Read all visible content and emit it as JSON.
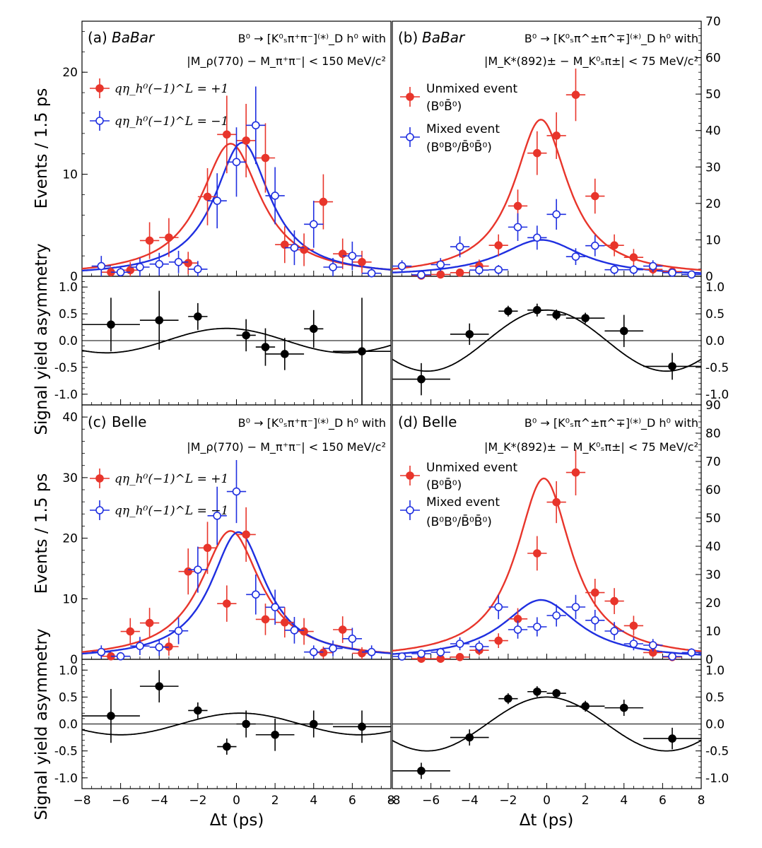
{
  "labels": {
    "y_events": "Events / 1.5 ps",
    "y_asym": "Signal yield asymmetry",
    "x_label": "Δt (ps)"
  },
  "colors": {
    "red": "#e8352b",
    "blue": "#1f2fe0",
    "black": "#000000"
  },
  "panels": {
    "a": {
      "tag": "(a)",
      "experiment": "BaBar",
      "decay": "B⁰ → [K⁰ₛπ⁺π⁻]⁽*⁾_D h⁰ with",
      "cut": "|M_ρ(770) − M_π⁺π⁻| < 150 MeV/c²",
      "legend": [
        "qη_h⁰(−1)^L = +1",
        "qη_h⁰(−1)^L = −1"
      ]
    },
    "b": {
      "tag": "(b)",
      "experiment": "BaBar",
      "decay": "B⁰ → [K⁰ₛπ^±π^∓]⁽*⁾_D h⁰ with",
      "cut": "|M_K*(892)± − M_K⁰ₛπ±| < 75 MeV/c²",
      "legend": [
        "Unmixed event",
        "(B⁰B̄⁰)",
        "Mixed event",
        "(B⁰B⁰/B̄⁰B̄⁰)"
      ]
    },
    "c": {
      "tag": "(c)",
      "experiment": "Belle",
      "decay": "B⁰ → [K⁰ₛπ⁺π⁻]⁽*⁾_D h⁰ with",
      "cut": "|M_ρ(770) − M_π⁺π⁻| < 150 MeV/c²",
      "legend": [
        "qη_h⁰(−1)^L = +1",
        "qη_h⁰(−1)^L = −1"
      ]
    },
    "d": {
      "tag": "(d)",
      "experiment": "Belle",
      "decay": "B⁰ → [K⁰ₛπ^±π^∓]⁽*⁾_D h⁰ with",
      "cut": "|M_K*(892)± − M_K⁰ₛπ±| < 75 MeV/c²",
      "legend": [
        "Unmixed event",
        "(B⁰B̄⁰)",
        "Mixed event",
        "(B⁰B⁰/B̄⁰B̄⁰)"
      ]
    }
  },
  "chart_data": [
    {
      "id": "a_top",
      "type": "scatter",
      "xlim": [
        -8,
        8
      ],
      "ylim": [
        0,
        25
      ],
      "yticks": [
        0,
        10,
        20
      ],
      "xlabel": "Δt (ps)",
      "ylabel": "Events / 1.5 ps",
      "series": [
        {
          "name": "qη_h⁰(−1)^L = +1",
          "color": "red",
          "marker": "filled",
          "x": [
            -6.5,
            -5.5,
            -4.5,
            -3.5,
            -2.5,
            -1.5,
            -0.5,
            0.5,
            1.5,
            2.5,
            3.5,
            4.5,
            5.5,
            6.5
          ],
          "y": [
            0.4,
            0.6,
            3.5,
            3.8,
            1.3,
            7.8,
            13.9,
            13.3,
            11.6,
            3.1,
            2.6,
            7.3,
            2.2,
            1.4
          ],
          "err": [
            0.5,
            0.8,
            1.8,
            1.9,
            1.1,
            2.8,
            3.8,
            3.6,
            3.4,
            1.8,
            1.6,
            2.7,
            1.5,
            1.1
          ],
          "fit": {
            "A": 13,
            "mu": -0.3,
            "w": 1.9,
            "C": 0
          }
        },
        {
          "name": "qη_h⁰(−1)^L = −1",
          "color": "blue",
          "marker": "open",
          "x": [
            -7,
            -6,
            -5,
            -4,
            -3,
            -2,
            -1,
            0,
            1,
            2,
            3,
            4,
            5,
            6,
            7
          ],
          "y": [
            1.0,
            0.4,
            0.9,
            1.2,
            1.4,
            0.7,
            7.4,
            11.2,
            14.8,
            7.9,
            2.8,
            5.1,
            0.9,
            2.0,
            0.3
          ],
          "err": [
            1.0,
            0.6,
            0.9,
            1.1,
            1.1,
            0.8,
            2.7,
            3.4,
            3.8,
            2.8,
            1.7,
            2.3,
            0.9,
            1.4,
            0.5
          ],
          "fit": {
            "A": 13.1,
            "mu": 0.3,
            "w": 1.75,
            "C": 0
          }
        }
      ]
    },
    {
      "id": "a_asym",
      "type": "scatter",
      "xlim": [
        -8,
        8
      ],
      "ylim": [
        -1.2,
        1.2
      ],
      "yticks": [
        1.0,
        0.5,
        0.0,
        -0.5,
        -1.0
      ],
      "ylabel": "Signal yield asymmetry",
      "series": [
        {
          "name": "asymmetry",
          "color": "black",
          "marker": "filled",
          "x": [
            -6.5,
            -4,
            -2,
            0.5,
            1.5,
            2.5,
            4,
            6.5
          ],
          "y": [
            0.3,
            0.38,
            0.45,
            0.1,
            -0.12,
            -0.25,
            0.22,
            -0.2
          ],
          "err": [
            0.5,
            0.55,
            0.25,
            0.3,
            0.35,
            0.3,
            0.35,
            1.0
          ],
          "xerr": [
            1.5,
            1,
            0.5,
            0.5,
            0.5,
            1,
            0.5,
            1.5
          ]
        }
      ],
      "fit": {
        "amp": 0.22,
        "sin": -0.06,
        "dm": 0.507
      }
    },
    {
      "id": "b_top",
      "type": "scatter",
      "xlim": [
        -8,
        8
      ],
      "ylim": [
        0,
        70
      ],
      "yticks": [
        0,
        10,
        20,
        30,
        40,
        50,
        60,
        70
      ],
      "ylabel": "Events / 1.5 ps",
      "series": [
        {
          "name": "Unmixed event (B⁰B̄⁰)",
          "color": "red",
          "marker": "filled",
          "x": [
            -6.5,
            -5.5,
            -4.5,
            -3.5,
            -2.5,
            -1.5,
            -0.5,
            0.5,
            1.5,
            2.5,
            3.5,
            4.5,
            5.5,
            6.5
          ],
          "y": [
            0.2,
            0.5,
            1.0,
            2.8,
            8.5,
            19.3,
            33.8,
            38.6,
            49.8,
            22.0,
            8.5,
            5.2,
            1.9,
            1.3
          ],
          "err": [
            0.4,
            0.7,
            1.0,
            1.8,
            3.0,
            4.5,
            6.0,
            6.4,
            7.2,
            4.8,
            3.0,
            2.3,
            1.3,
            1.1
          ],
          "fit": {
            "A": 43,
            "mu": -0.3,
            "w": 1.7,
            "C": 0
          }
        },
        {
          "name": "Mixed event (B⁰B⁰/B̄⁰B̄⁰)",
          "color": "blue",
          "marker": "open",
          "x": [
            -7.5,
            -6.5,
            -5.5,
            -4.5,
            -3.5,
            -2.5,
            -1.5,
            -0.5,
            0.5,
            1.5,
            2.5,
            3.5,
            4.5,
            5.5,
            6.5,
            7.5
          ],
          "y": [
            2.8,
            0.4,
            3.2,
            8.1,
            1.7,
            1.8,
            13.5,
            10.6,
            17.0,
            5.4,
            8.4,
            1.8,
            1.8,
            2.8,
            1.0,
            0.5
          ],
          "err": [
            1.6,
            0.7,
            1.8,
            2.9,
            1.3,
            1.3,
            3.8,
            3.3,
            4.2,
            2.3,
            2.9,
            1.3,
            1.3,
            1.6,
            1.0,
            0.7
          ],
          "fit": {
            "A": 10,
            "mu": -0.3,
            "w": 2.6,
            "C": 0
          }
        }
      ]
    },
    {
      "id": "b_asym",
      "type": "scatter",
      "xlim": [
        -8,
        8
      ],
      "ylim": [
        -1.2,
        1.2
      ],
      "yticks": [
        1.0,
        0.5,
        0.0,
        -0.5,
        -1.0
      ],
      "series": [
        {
          "name": "asymmetry",
          "color": "black",
          "marker": "filled",
          "x": [
            -6.5,
            -4,
            -2,
            -0.5,
            0.5,
            2,
            4,
            6.5
          ],
          "y": [
            -0.72,
            0.12,
            0.55,
            0.57,
            0.48,
            0.42,
            0.18,
            -0.48
          ],
          "err": [
            0.3,
            0.2,
            0.1,
            0.12,
            0.1,
            0.1,
            0.3,
            0.25
          ],
          "xerr": [
            1.5,
            1,
            0.5,
            0.5,
            0.5,
            1,
            1,
            1.5
          ]
        }
      ],
      "fit": {
        "amp": 0.57,
        "sin": 0,
        "dm": 0.507
      }
    },
    {
      "id": "c_top",
      "type": "scatter",
      "xlim": [
        -8,
        8
      ],
      "ylim": [
        0,
        42
      ],
      "yticks": [
        0,
        10,
        20,
        30,
        40
      ],
      "ylabel": "Events / 1.5 ps",
      "series": [
        {
          "name": "qη_h⁰(−1)^L = +1",
          "color": "red",
          "marker": "filled",
          "x": [
            -6.5,
            -5.5,
            -4.5,
            -3.5,
            -2.5,
            -1.5,
            -0.5,
            0.5,
            1.5,
            2.5,
            3.5,
            4.5,
            5.5,
            6.5
          ],
          "y": [
            0.5,
            4.6,
            6.0,
            2.1,
            14.5,
            18.4,
            9.2,
            20.6,
            6.6,
            6.1,
            4.6,
            1.1,
            4.9,
            1.0
          ],
          "err": [
            0.7,
            2.2,
            2.5,
            1.5,
            3.8,
            4.3,
            3.0,
            4.5,
            2.6,
            2.5,
            2.2,
            1.0,
            2.2,
            1.0
          ],
          "fit": {
            "A": 21.2,
            "mu": -0.3,
            "w": 1.9,
            "C": 0
          }
        },
        {
          "name": "qη_h⁰(−1)^L = −1",
          "color": "blue",
          "marker": "open",
          "x": [
            -7,
            -6,
            -5,
            -4,
            -3,
            -2,
            -1,
            0,
            1,
            2,
            3,
            4,
            5,
            6,
            7
          ],
          "y": [
            1.2,
            0.5,
            2.2,
            2.0,
            4.7,
            14.8,
            23.7,
            27.7,
            10.7,
            8.6,
            4.8,
            1.2,
            1.8,
            3.4,
            1.2
          ],
          "err": [
            1.1,
            0.7,
            1.5,
            1.4,
            2.2,
            3.8,
            4.8,
            5.2,
            3.3,
            2.9,
            2.2,
            1.1,
            1.3,
            1.8,
            1.1
          ],
          "fit": {
            "A": 21,
            "mu": 0.1,
            "w": 1.75,
            "C": 0
          }
        }
      ]
    },
    {
      "id": "c_asym",
      "type": "scatter",
      "xlim": [
        -8,
        8
      ],
      "ylim": [
        -1.2,
        1.2
      ],
      "yticks": [
        1.0,
        0.5,
        0.0,
        -0.5,
        -1.0
      ],
      "ylabel": "Signal yield asymmetry",
      "series": [
        {
          "name": "asymmetry",
          "color": "black",
          "marker": "filled",
          "x": [
            -6.5,
            -4,
            -2,
            -0.5,
            0.5,
            2,
            4,
            6.5
          ],
          "y": [
            0.15,
            0.7,
            0.25,
            -0.42,
            0.0,
            -0.2,
            0.0,
            -0.05
          ],
          "err": [
            0.5,
            0.3,
            0.15,
            0.15,
            0.25,
            0.3,
            0.25,
            0.3
          ],
          "xerr": [
            1.5,
            1,
            0.5,
            0.5,
            0.5,
            1,
            1,
            1.5
          ]
        }
      ],
      "fit": {
        "amp": 0.2,
        "sin": 0.02,
        "dm": 0.507
      }
    },
    {
      "id": "d_top",
      "type": "scatter",
      "xlim": [
        -8,
        8
      ],
      "ylim": [
        0,
        90
      ],
      "yticks": [
        0,
        10,
        20,
        30,
        40,
        50,
        60,
        70,
        80,
        90
      ],
      "ylabel": "Events / 1.5 ps",
      "series": [
        {
          "name": "Unmixed event (B⁰B̄⁰)",
          "color": "red",
          "marker": "filled",
          "x": [
            -6.5,
            -5.5,
            -4.5,
            -3.5,
            -2.5,
            -1.5,
            -0.5,
            0.5,
            1.5,
            2.5,
            3.5,
            4.5,
            5.5,
            6.5
          ],
          "y": [
            0.2,
            0.2,
            0.8,
            3.2,
            6.6,
            14.3,
            37.5,
            55.6,
            66.1,
            23.6,
            20.6,
            11.9,
            2.4,
            0.8
          ],
          "err": [
            0.4,
            0.4,
            0.9,
            1.8,
            2.6,
            3.8,
            6.1,
            7.4,
            8.1,
            4.9,
            4.6,
            3.5,
            1.6,
            0.9
          ],
          "fit": {
            "A": 64,
            "mu": -0.15,
            "w": 1.75,
            "C": 0
          }
        },
        {
          "name": "Mixed event (B⁰B⁰/B̄⁰B̄⁰)",
          "color": "blue",
          "marker": "open",
          "x": [
            -7.5,
            -6.5,
            -5.5,
            -4.5,
            -3.5,
            -2.5,
            -1.5,
            -0.5,
            0.5,
            1.5,
            2.5,
            3.5,
            4.5,
            5.5,
            6.5,
            7.5
          ],
          "y": [
            1.0,
            2.0,
            2.5,
            5.5,
            4.5,
            18.5,
            10.5,
            11.5,
            15.5,
            18.5,
            13.8,
            10.0,
            5.5,
            5.0,
            1.0,
            2.4
          ],
          "err": [
            1.0,
            1.4,
            1.6,
            2.3,
            2.1,
            4.3,
            3.2,
            3.4,
            3.9,
            4.3,
            3.7,
            3.2,
            2.3,
            2.2,
            1.0,
            1.5
          ],
          "fit": {
            "A": 21,
            "mu": -0.3,
            "w": 2.4,
            "C": 0
          }
        }
      ]
    },
    {
      "id": "d_asym",
      "type": "scatter",
      "xlim": [
        -8,
        8
      ],
      "ylim": [
        -1.2,
        1.2
      ],
      "yticks": [
        1.0,
        0.5,
        0.0,
        -0.5,
        -1.0
      ],
      "series": [
        {
          "name": "asymmetry",
          "color": "black",
          "marker": "filled",
          "x": [
            -6.5,
            -4,
            -2,
            -0.5,
            0.5,
            2,
            4,
            6.5
          ],
          "y": [
            -0.87,
            -0.25,
            0.47,
            0.6,
            0.57,
            0.33,
            0.3,
            -0.27
          ],
          "err": [
            0.15,
            0.15,
            0.1,
            0.1,
            0.08,
            0.1,
            0.15,
            0.2
          ],
          "xerr": [
            1.5,
            1,
            0.5,
            0.5,
            0.5,
            1,
            1,
            1.5
          ]
        }
      ],
      "fit": {
        "amp": 0.5,
        "sin": 0,
        "dm": 0.507
      }
    }
  ]
}
